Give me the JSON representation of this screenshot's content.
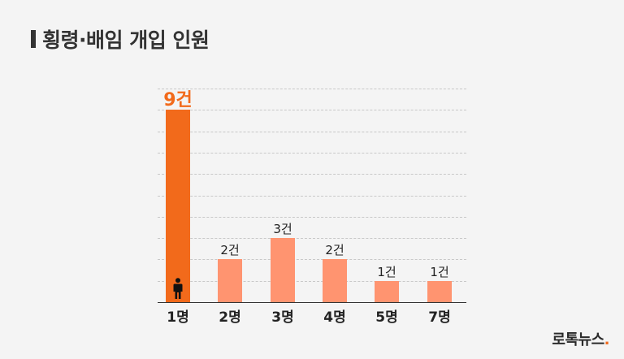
{
  "header": {
    "title": "횡령·배임 개입 인원"
  },
  "brand": {
    "name": "로톡뉴스",
    "dot": "."
  },
  "colors": {
    "highlight": "#f26a1b",
    "bar": "#ff9470",
    "text": "#222222",
    "background": "#f4f4f4"
  },
  "chart_data": {
    "type": "bar",
    "title": "횡령·배임 개입 인원",
    "xlabel": "",
    "ylabel": "",
    "categories": [
      "1명",
      "2명",
      "3명",
      "4명",
      "5명",
      "7명"
    ],
    "values": [
      9,
      2,
      3,
      2,
      1,
      1
    ],
    "value_labels": [
      "9건",
      "2건",
      "3건",
      "2건",
      "1건",
      "1건"
    ],
    "highlight_index": 0,
    "ylim": [
      0,
      10
    ],
    "grid": true,
    "legend": null,
    "annotations": [
      "person icon inside 1명 bar"
    ]
  },
  "bars": [
    {
      "category": "1명",
      "label": "9건",
      "value": 9
    },
    {
      "category": "2명",
      "label": "2건",
      "value": 2
    },
    {
      "category": "3명",
      "label": "3건",
      "value": 3
    },
    {
      "category": "4명",
      "label": "2건",
      "value": 2
    },
    {
      "category": "5명",
      "label": "1건",
      "value": 1
    },
    {
      "category": "7명",
      "label": "1건",
      "value": 1
    }
  ]
}
